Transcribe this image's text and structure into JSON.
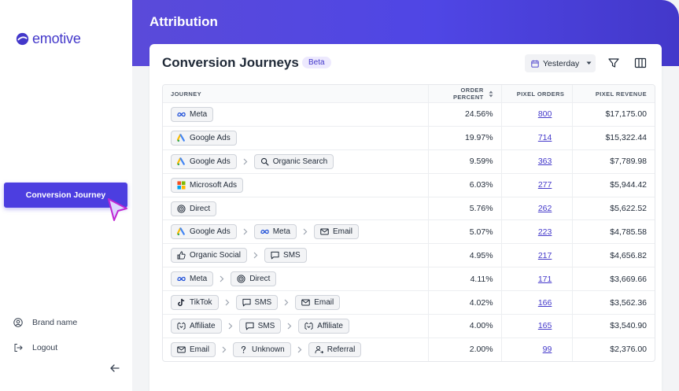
{
  "brand": {
    "name": "emotive",
    "color": "#4338ca"
  },
  "sidebar": {
    "active_item": "Conversion Journey",
    "brand_name_label": "Brand name",
    "logout_label": "Logout"
  },
  "header": {
    "title": "Attribution"
  },
  "card": {
    "title": "Conversion Journeys",
    "badge": "Beta",
    "date_filter": "Yesterday"
  },
  "table": {
    "columns": [
      "JOURNEY",
      "ORDER PERCENT",
      "PIXEL ORDERS",
      "PIXEL REVENUE"
    ],
    "rows": [
      {
        "journey": [
          {
            "label": "Meta",
            "icon": "meta"
          }
        ],
        "order_percent": "24.56%",
        "pixel_orders": "800",
        "pixel_revenue": "$17,175.00"
      },
      {
        "journey": [
          {
            "label": "Google Ads",
            "icon": "google-ads"
          }
        ],
        "order_percent": "19.97%",
        "pixel_orders": "714",
        "pixel_revenue": "$15,322.44"
      },
      {
        "journey": [
          {
            "label": "Google Ads",
            "icon": "google-ads"
          },
          {
            "label": "Organic Search",
            "icon": "search"
          }
        ],
        "order_percent": "9.59%",
        "pixel_orders": "363",
        "pixel_revenue": "$7,789.98"
      },
      {
        "journey": [
          {
            "label": "Microsoft Ads",
            "icon": "microsoft"
          }
        ],
        "order_percent": "6.03%",
        "pixel_orders": "277",
        "pixel_revenue": "$5,944.42"
      },
      {
        "journey": [
          {
            "label": "Direct",
            "icon": "target"
          }
        ],
        "order_percent": "5.76%",
        "pixel_orders": "262",
        "pixel_revenue": "$5,622.52"
      },
      {
        "journey": [
          {
            "label": "Google Ads",
            "icon": "google-ads"
          },
          {
            "label": "Meta",
            "icon": "meta"
          },
          {
            "label": "Email",
            "icon": "email"
          }
        ],
        "order_percent": "5.07%",
        "pixel_orders": "223",
        "pixel_revenue": "$4,785.58"
      },
      {
        "journey": [
          {
            "label": "Organic Social",
            "icon": "thumbs-up"
          },
          {
            "label": "SMS",
            "icon": "sms"
          }
        ],
        "order_percent": "4.95%",
        "pixel_orders": "217",
        "pixel_revenue": "$4,656.82"
      },
      {
        "journey": [
          {
            "label": "Meta",
            "icon": "meta"
          },
          {
            "label": "Direct",
            "icon": "target"
          }
        ],
        "order_percent": "4.11%",
        "pixel_orders": "171",
        "pixel_revenue": "$3,669.66"
      },
      {
        "journey": [
          {
            "label": "TikTok",
            "icon": "tiktok"
          },
          {
            "label": "SMS",
            "icon": "sms"
          },
          {
            "label": "Email",
            "icon": "email"
          }
        ],
        "order_percent": "4.02%",
        "pixel_orders": "166",
        "pixel_revenue": "$3,562.36"
      },
      {
        "journey": [
          {
            "label": "Affiliate",
            "icon": "affiliate"
          },
          {
            "label": "SMS",
            "icon": "sms"
          },
          {
            "label": "Affiliate",
            "icon": "affiliate"
          }
        ],
        "order_percent": "4.00%",
        "pixel_orders": "165",
        "pixel_revenue": "$3,540.90"
      },
      {
        "journey": [
          {
            "label": "Email",
            "icon": "email"
          },
          {
            "label": "Unknown",
            "icon": "question"
          },
          {
            "label": "Referral",
            "icon": "referral"
          }
        ],
        "order_percent": "2.00%",
        "pixel_orders": "99",
        "pixel_revenue": "$2,376.00"
      }
    ]
  }
}
